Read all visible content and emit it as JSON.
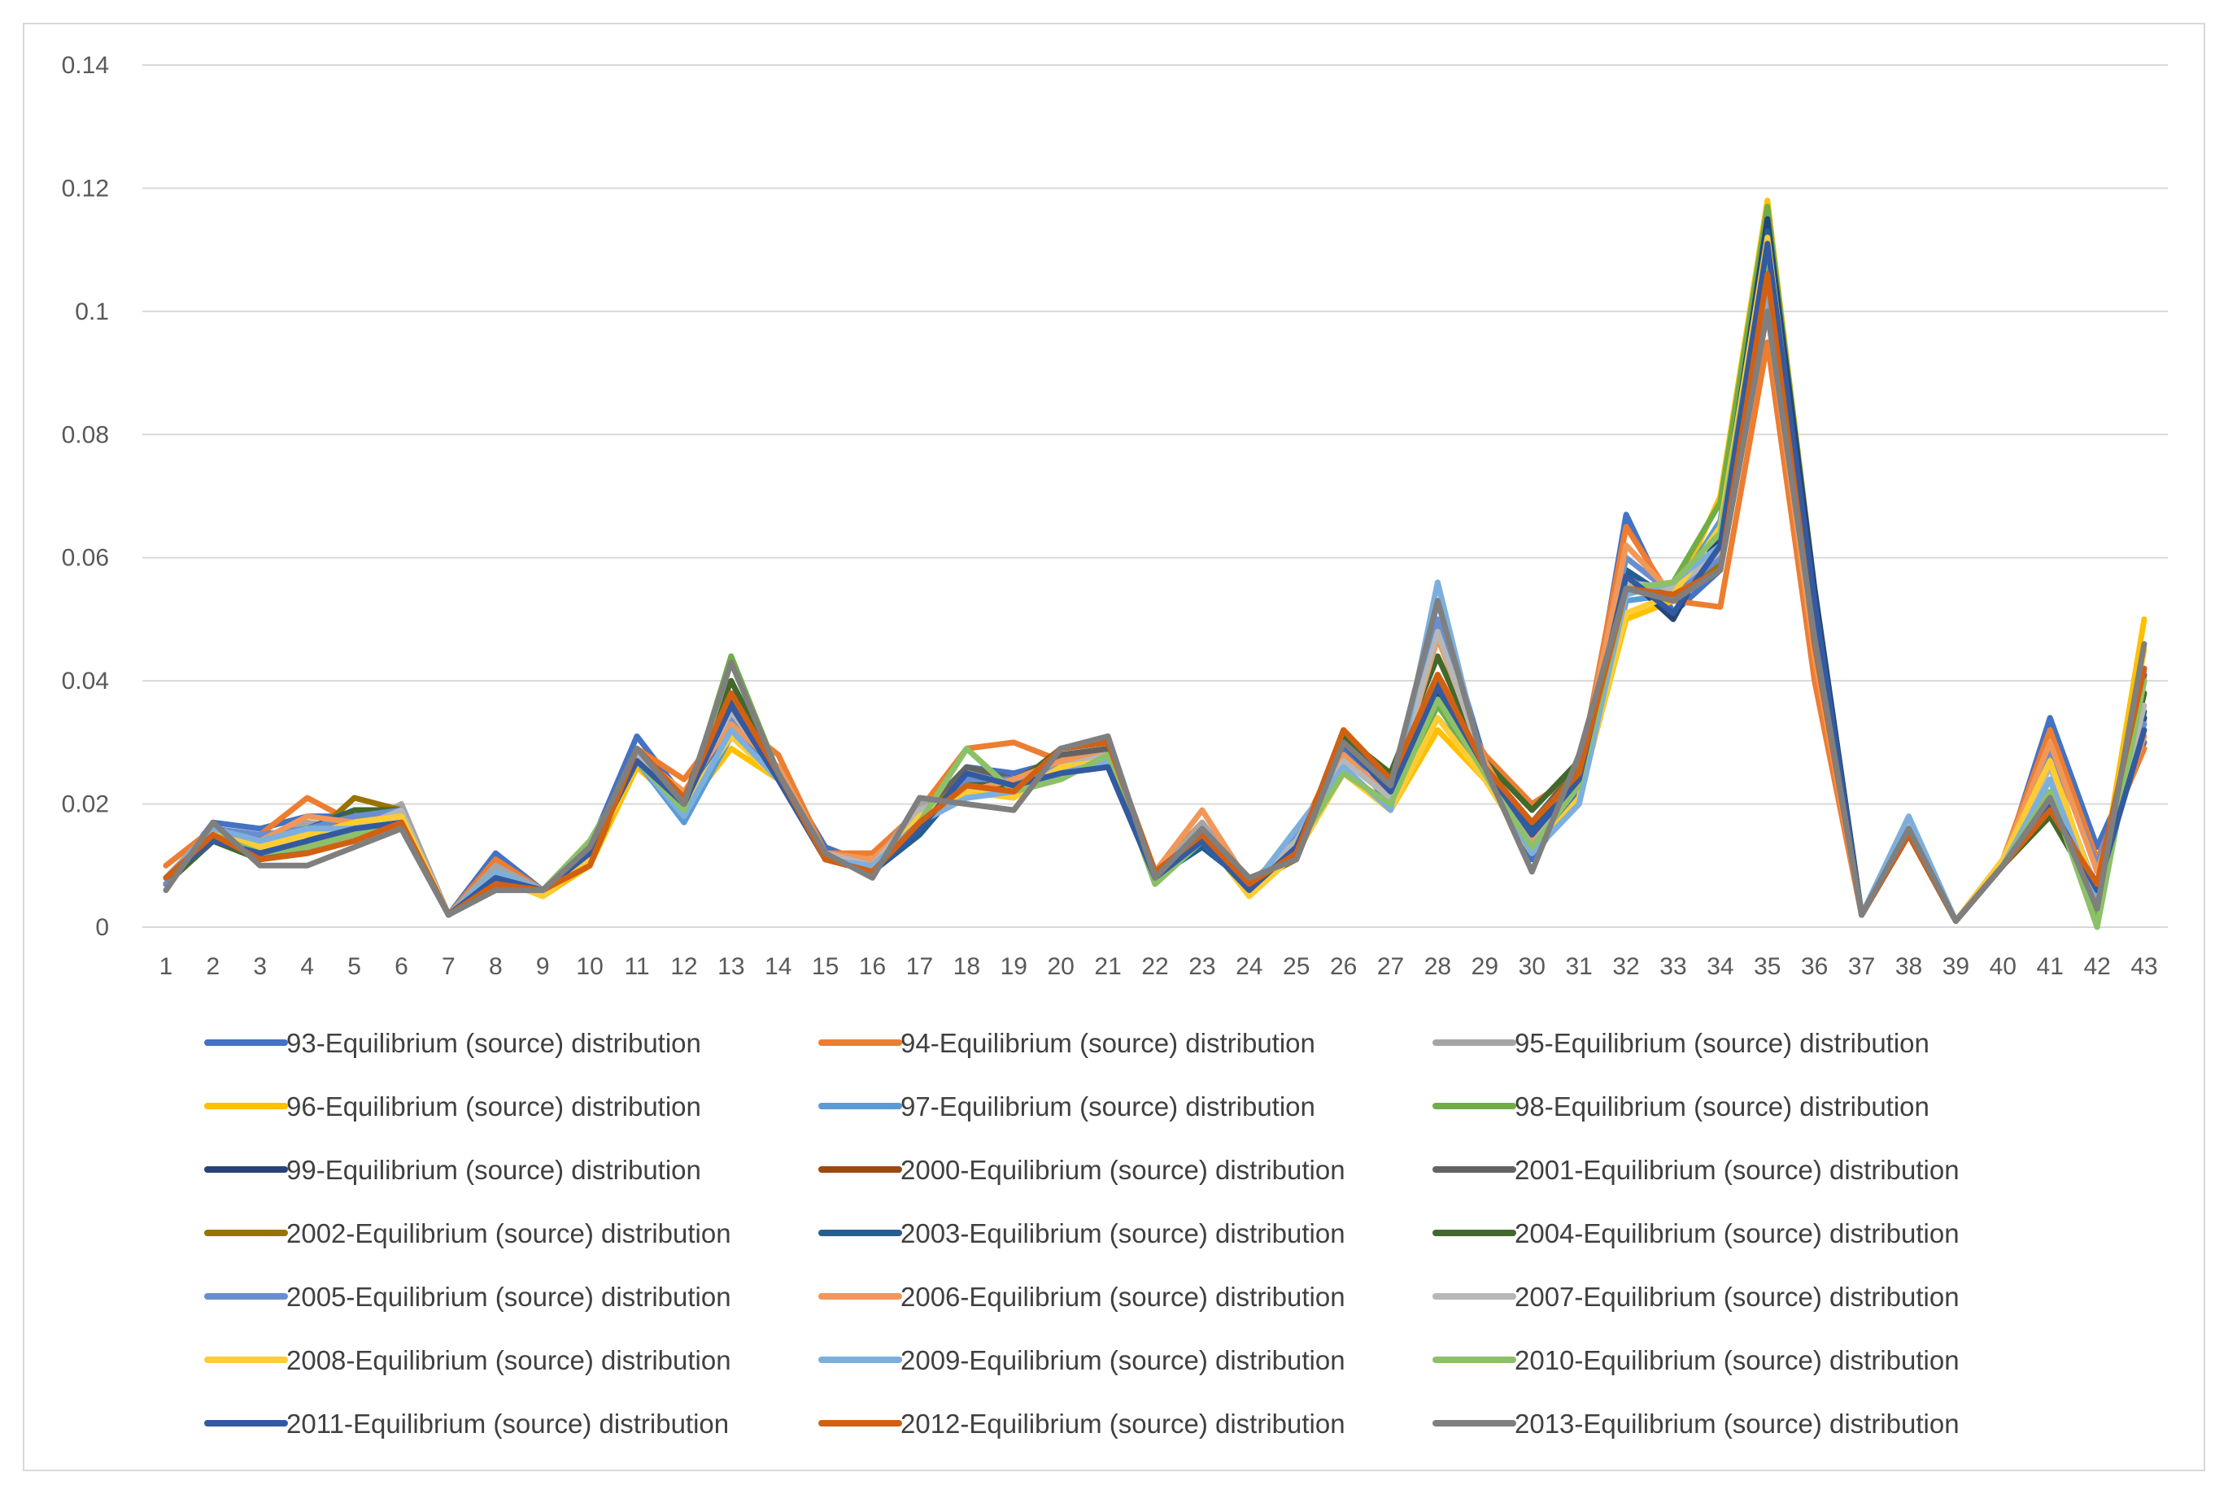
{
  "chart_data": {
    "type": "line",
    "title": "",
    "xlabel": "",
    "ylabel": "",
    "x": [
      1,
      2,
      3,
      4,
      5,
      6,
      7,
      8,
      9,
      10,
      11,
      12,
      13,
      14,
      15,
      16,
      17,
      18,
      19,
      20,
      21,
      22,
      23,
      24,
      25,
      26,
      27,
      28,
      29,
      30,
      31,
      32,
      33,
      34,
      35,
      36,
      37,
      38,
      39,
      40,
      41,
      42,
      43
    ],
    "x_tick_labels": [
      "1",
      "2",
      "3",
      "4",
      "5",
      "6",
      "7",
      "8",
      "9",
      "10",
      "11",
      "12",
      "13",
      "14",
      "15",
      "16",
      "17",
      "18",
      "19",
      "20",
      "21",
      "22",
      "23",
      "24",
      "25",
      "26",
      "27",
      "28",
      "29",
      "30",
      "31",
      "32",
      "33",
      "34",
      "35",
      "36",
      "37",
      "38",
      "39",
      "40",
      "41",
      "42",
      "43"
    ],
    "ylim": [
      0,
      0.14
    ],
    "y_ticks": [
      0,
      0.02,
      0.04,
      0.06,
      0.08,
      0.1,
      0.12,
      0.14
    ],
    "y_tick_labels": [
      "0",
      "0.02",
      "0.04",
      "0.06",
      "0.08",
      "0.1",
      "0.12",
      "0.14"
    ],
    "grid": true,
    "legend_position": "bottom",
    "series": [
      {
        "name": "93-Equilibrium (source) distribution",
        "color": "#4472c4",
        "values": [
          0.007,
          0.017,
          0.016,
          0.018,
          0.018,
          0.019,
          0.002,
          0.012,
          0.006,
          0.013,
          0.031,
          0.021,
          0.032,
          0.026,
          0.013,
          0.01,
          0.018,
          0.026,
          0.025,
          0.027,
          0.028,
          0.008,
          0.015,
          0.006,
          0.014,
          0.029,
          0.02,
          0.053,
          0.027,
          0.011,
          0.022,
          0.067,
          0.051,
          0.058,
          0.108,
          0.05,
          0.002,
          0.016,
          0.001,
          0.01,
          0.034,
          0.013,
          0.03
        ]
      },
      {
        "name": "94-Equilibrium (source) distribution",
        "color": "#ed7d31",
        "values": [
          0.01,
          0.016,
          0.015,
          0.021,
          0.017,
          0.018,
          0.002,
          0.011,
          0.006,
          0.012,
          0.029,
          0.024,
          0.034,
          0.028,
          0.012,
          0.012,
          0.019,
          0.029,
          0.03,
          0.027,
          0.029,
          0.009,
          0.017,
          0.007,
          0.014,
          0.03,
          0.022,
          0.041,
          0.028,
          0.02,
          0.025,
          0.065,
          0.053,
          0.052,
          0.095,
          0.04,
          0.002,
          0.016,
          0.001,
          0.011,
          0.032,
          0.011,
          0.029
        ]
      },
      {
        "name": "95-Equilibrium (source) distribution",
        "color": "#a5a5a5",
        "values": [
          0.008,
          0.016,
          0.014,
          0.017,
          0.016,
          0.02,
          0.002,
          0.01,
          0.006,
          0.012,
          0.028,
          0.021,
          0.035,
          0.025,
          0.012,
          0.01,
          0.02,
          0.022,
          0.024,
          0.026,
          0.029,
          0.008,
          0.017,
          0.007,
          0.014,
          0.027,
          0.022,
          0.04,
          0.026,
          0.014,
          0.024,
          0.056,
          0.054,
          0.06,
          0.102,
          0.045,
          0.002,
          0.017,
          0.001,
          0.011,
          0.027,
          0.005,
          0.034
        ]
      },
      {
        "name": "96-Equilibrium (source) distribution",
        "color": "#ffc000",
        "values": [
          0.008,
          0.015,
          0.013,
          0.015,
          0.018,
          0.018,
          0.002,
          0.008,
          0.005,
          0.01,
          0.026,
          0.019,
          0.029,
          0.024,
          0.011,
          0.009,
          0.019,
          0.022,
          0.021,
          0.026,
          0.027,
          0.008,
          0.015,
          0.005,
          0.012,
          0.025,
          0.019,
          0.032,
          0.024,
          0.012,
          0.021,
          0.05,
          0.053,
          0.07,
          0.118,
          0.055,
          0.002,
          0.016,
          0.001,
          0.011,
          0.028,
          0.004,
          0.05
        ]
      },
      {
        "name": "97-Equilibrium (source) distribution",
        "color": "#5b9bd5",
        "values": [
          0.008,
          0.015,
          0.014,
          0.016,
          0.016,
          0.016,
          0.002,
          0.009,
          0.006,
          0.012,
          0.027,
          0.017,
          0.031,
          0.024,
          0.011,
          0.01,
          0.017,
          0.021,
          0.022,
          0.025,
          0.027,
          0.008,
          0.014,
          0.006,
          0.015,
          0.026,
          0.019,
          0.034,
          0.025,
          0.012,
          0.02,
          0.053,
          0.054,
          0.066,
          0.113,
          0.052,
          0.002,
          0.016,
          0.001,
          0.01,
          0.024,
          0.003,
          0.042
        ]
      },
      {
        "name": "98-Equilibrium (source) distribution",
        "color": "#70ad47",
        "values": [
          0.008,
          0.014,
          0.012,
          0.013,
          0.015,
          0.017,
          0.002,
          0.008,
          0.006,
          0.014,
          0.027,
          0.019,
          0.044,
          0.025,
          0.011,
          0.009,
          0.017,
          0.029,
          0.022,
          0.024,
          0.028,
          0.007,
          0.014,
          0.006,
          0.013,
          0.025,
          0.02,
          0.036,
          0.025,
          0.013,
          0.023,
          0.055,
          0.056,
          0.069,
          0.117,
          0.055,
          0.002,
          0.016,
          0.001,
          0.01,
          0.022,
          0.002,
          0.04
        ]
      },
      {
        "name": "99-Equilibrium (source) distribution",
        "color": "#264478",
        "values": [
          0.008,
          0.014,
          0.012,
          0.014,
          0.016,
          0.017,
          0.002,
          0.008,
          0.006,
          0.012,
          0.027,
          0.02,
          0.036,
          0.024,
          0.011,
          0.009,
          0.016,
          0.025,
          0.023,
          0.025,
          0.026,
          0.008,
          0.014,
          0.006,
          0.013,
          0.03,
          0.022,
          0.038,
          0.026,
          0.015,
          0.024,
          0.057,
          0.05,
          0.064,
          0.115,
          0.055,
          0.002,
          0.015,
          0.001,
          0.01,
          0.02,
          0.006,
          0.034
        ]
      },
      {
        "name": "2000-Equilibrium (source) distribution",
        "color": "#9e480e",
        "values": [
          0.008,
          0.015,
          0.011,
          0.012,
          0.014,
          0.017,
          0.002,
          0.007,
          0.006,
          0.01,
          0.029,
          0.021,
          0.038,
          0.025,
          0.011,
          0.009,
          0.017,
          0.023,
          0.022,
          0.029,
          0.03,
          0.009,
          0.015,
          0.007,
          0.012,
          0.032,
          0.024,
          0.04,
          0.026,
          0.017,
          0.025,
          0.055,
          0.054,
          0.059,
          0.109,
          0.048,
          0.002,
          0.015,
          0.001,
          0.01,
          0.019,
          0.007,
          0.04
        ]
      },
      {
        "name": "2001-Equilibrium (source) distribution",
        "color": "#636363",
        "values": [
          0.007,
          0.014,
          0.011,
          0.013,
          0.015,
          0.017,
          0.002,
          0.007,
          0.006,
          0.011,
          0.028,
          0.021,
          0.037,
          0.025,
          0.011,
          0.009,
          0.018,
          0.026,
          0.024,
          0.028,
          0.029,
          0.008,
          0.015,
          0.007,
          0.012,
          0.031,
          0.024,
          0.041,
          0.026,
          0.017,
          0.026,
          0.056,
          0.053,
          0.059,
          0.107,
          0.047,
          0.002,
          0.015,
          0.001,
          0.01,
          0.02,
          0.007,
          0.041
        ]
      },
      {
        "name": "2002-Equilibrium (source) distribution",
        "color": "#997300",
        "values": [
          0.007,
          0.014,
          0.011,
          0.014,
          0.021,
          0.019,
          0.002,
          0.007,
          0.006,
          0.01,
          0.028,
          0.021,
          0.036,
          0.025,
          0.011,
          0.009,
          0.018,
          0.024,
          0.022,
          0.029,
          0.03,
          0.009,
          0.015,
          0.007,
          0.011,
          0.03,
          0.023,
          0.039,
          0.026,
          0.016,
          0.026,
          0.055,
          0.053,
          0.059,
          0.107,
          0.048,
          0.002,
          0.015,
          0.001,
          0.01,
          0.02,
          0.007,
          0.04
        ]
      },
      {
        "name": "2003-Equilibrium (source) distribution",
        "color": "#255e91",
        "values": [
          0.007,
          0.014,
          0.015,
          0.016,
          0.019,
          0.019,
          0.002,
          0.007,
          0.006,
          0.011,
          0.028,
          0.021,
          0.037,
          0.025,
          0.011,
          0.009,
          0.015,
          0.024,
          0.023,
          0.027,
          0.028,
          0.008,
          0.013,
          0.007,
          0.012,
          0.03,
          0.023,
          0.04,
          0.026,
          0.016,
          0.025,
          0.058,
          0.053,
          0.062,
          0.113,
          0.051,
          0.002,
          0.015,
          0.001,
          0.01,
          0.02,
          0.007,
          0.035
        ]
      },
      {
        "name": "2004-Equilibrium (source) distribution",
        "color": "#43682b",
        "values": [
          0.007,
          0.014,
          0.011,
          0.014,
          0.019,
          0.019,
          0.002,
          0.007,
          0.006,
          0.011,
          0.028,
          0.021,
          0.04,
          0.025,
          0.011,
          0.009,
          0.017,
          0.024,
          0.023,
          0.029,
          0.03,
          0.008,
          0.014,
          0.007,
          0.012,
          0.031,
          0.025,
          0.044,
          0.027,
          0.019,
          0.027,
          0.056,
          0.054,
          0.06,
          0.109,
          0.049,
          0.002,
          0.015,
          0.001,
          0.01,
          0.018,
          0.005,
          0.038
        ]
      },
      {
        "name": "2005-Equilibrium (source) distribution",
        "color": "#698ed0",
        "values": [
          0.007,
          0.016,
          0.015,
          0.016,
          0.018,
          0.019,
          0.002,
          0.008,
          0.006,
          0.012,
          0.028,
          0.021,
          0.034,
          0.025,
          0.012,
          0.01,
          0.017,
          0.024,
          0.024,
          0.026,
          0.027,
          0.008,
          0.014,
          0.006,
          0.014,
          0.028,
          0.021,
          0.05,
          0.026,
          0.013,
          0.024,
          0.06,
          0.054,
          0.06,
          0.104,
          0.046,
          0.002,
          0.016,
          0.001,
          0.01,
          0.029,
          0.01,
          0.033
        ]
      },
      {
        "name": "2006-Equilibrium (source) distribution",
        "color": "#f1975a",
        "values": [
          0.008,
          0.016,
          0.014,
          0.018,
          0.017,
          0.018,
          0.002,
          0.009,
          0.006,
          0.012,
          0.028,
          0.022,
          0.033,
          0.026,
          0.012,
          0.011,
          0.018,
          0.022,
          0.024,
          0.027,
          0.028,
          0.009,
          0.019,
          0.007,
          0.014,
          0.028,
          0.021,
          0.047,
          0.027,
          0.014,
          0.025,
          0.062,
          0.054,
          0.058,
          0.1,
          0.044,
          0.002,
          0.016,
          0.001,
          0.011,
          0.03,
          0.009,
          0.031
        ]
      },
      {
        "name": "2007-Equilibrium (source) distribution",
        "color": "#b7b7b7",
        "values": [
          0.008,
          0.016,
          0.013,
          0.016,
          0.016,
          0.019,
          0.002,
          0.009,
          0.006,
          0.012,
          0.028,
          0.021,
          0.035,
          0.025,
          0.012,
          0.01,
          0.019,
          0.022,
          0.022,
          0.026,
          0.028,
          0.008,
          0.016,
          0.007,
          0.014,
          0.027,
          0.021,
          0.048,
          0.026,
          0.013,
          0.024,
          0.056,
          0.055,
          0.061,
          0.102,
          0.046,
          0.002,
          0.017,
          0.001,
          0.011,
          0.026,
          0.006,
          0.036
        ]
      },
      {
        "name": "2008-Equilibrium (source) distribution",
        "color": "#ffcd33",
        "values": [
          0.008,
          0.016,
          0.013,
          0.015,
          0.017,
          0.018,
          0.002,
          0.008,
          0.005,
          0.011,
          0.027,
          0.02,
          0.031,
          0.024,
          0.011,
          0.009,
          0.018,
          0.022,
          0.021,
          0.026,
          0.027,
          0.008,
          0.015,
          0.005,
          0.012,
          0.025,
          0.019,
          0.034,
          0.024,
          0.012,
          0.021,
          0.051,
          0.054,
          0.065,
          0.112,
          0.051,
          0.002,
          0.016,
          0.001,
          0.011,
          0.027,
          0.005,
          0.045
        ]
      },
      {
        "name": "2009-Equilibrium (source) distribution",
        "color": "#7cafdd",
        "values": [
          0.008,
          0.016,
          0.014,
          0.016,
          0.016,
          0.016,
          0.002,
          0.009,
          0.006,
          0.012,
          0.027,
          0.018,
          0.032,
          0.024,
          0.011,
          0.01,
          0.017,
          0.021,
          0.022,
          0.025,
          0.027,
          0.008,
          0.014,
          0.006,
          0.016,
          0.026,
          0.019,
          0.056,
          0.025,
          0.012,
          0.02,
          0.054,
          0.056,
          0.062,
          0.103,
          0.047,
          0.002,
          0.018,
          0.001,
          0.01,
          0.024,
          0.004,
          0.04
        ]
      },
      {
        "name": "2010-Equilibrium (source) distribution",
        "color": "#8cc168",
        "values": [
          0.008,
          0.015,
          0.012,
          0.013,
          0.015,
          0.017,
          0.002,
          0.008,
          0.006,
          0.014,
          0.027,
          0.019,
          0.043,
          0.025,
          0.011,
          0.009,
          0.017,
          0.029,
          0.022,
          0.024,
          0.028,
          0.007,
          0.014,
          0.006,
          0.013,
          0.025,
          0.02,
          0.037,
          0.025,
          0.013,
          0.023,
          0.055,
          0.056,
          0.064,
          0.11,
          0.05,
          0.002,
          0.016,
          0.001,
          0.01,
          0.022,
          0.0,
          0.04
        ]
      },
      {
        "name": "2011-Equilibrium (source) distribution",
        "color": "#335aa1",
        "values": [
          0.008,
          0.014,
          0.012,
          0.014,
          0.016,
          0.017,
          0.002,
          0.008,
          0.006,
          0.012,
          0.027,
          0.02,
          0.036,
          0.024,
          0.011,
          0.009,
          0.016,
          0.025,
          0.023,
          0.025,
          0.026,
          0.008,
          0.014,
          0.006,
          0.013,
          0.03,
          0.022,
          0.039,
          0.026,
          0.015,
          0.024,
          0.057,
          0.051,
          0.062,
          0.111,
          0.053,
          0.002,
          0.015,
          0.001,
          0.01,
          0.02,
          0.006,
          0.032
        ]
      },
      {
        "name": "2012-Equilibrium (source) distribution",
        "color": "#d26012",
        "values": [
          0.008,
          0.015,
          0.011,
          0.012,
          0.014,
          0.017,
          0.002,
          0.007,
          0.006,
          0.01,
          0.029,
          0.021,
          0.038,
          0.025,
          0.011,
          0.009,
          0.017,
          0.023,
          0.022,
          0.029,
          0.03,
          0.009,
          0.015,
          0.007,
          0.012,
          0.032,
          0.024,
          0.041,
          0.026,
          0.017,
          0.025,
          0.055,
          0.054,
          0.058,
          0.106,
          0.046,
          0.002,
          0.015,
          0.001,
          0.01,
          0.019,
          0.007,
          0.042
        ]
      },
      {
        "name": "2013-Equilibrium (source) distribution",
        "color": "#7f7f7f",
        "values": [
          0.006,
          0.017,
          0.01,
          0.01,
          0.013,
          0.016,
          0.002,
          0.006,
          0.006,
          0.013,
          0.029,
          0.02,
          0.043,
          0.025,
          0.012,
          0.008,
          0.021,
          0.02,
          0.019,
          0.029,
          0.031,
          0.008,
          0.016,
          0.008,
          0.011,
          0.03,
          0.023,
          0.053,
          0.026,
          0.009,
          0.028,
          0.055,
          0.053,
          0.058,
          0.1,
          0.047,
          0.002,
          0.016,
          0.001,
          0.01,
          0.021,
          0.003,
          0.046
        ]
      }
    ]
  }
}
